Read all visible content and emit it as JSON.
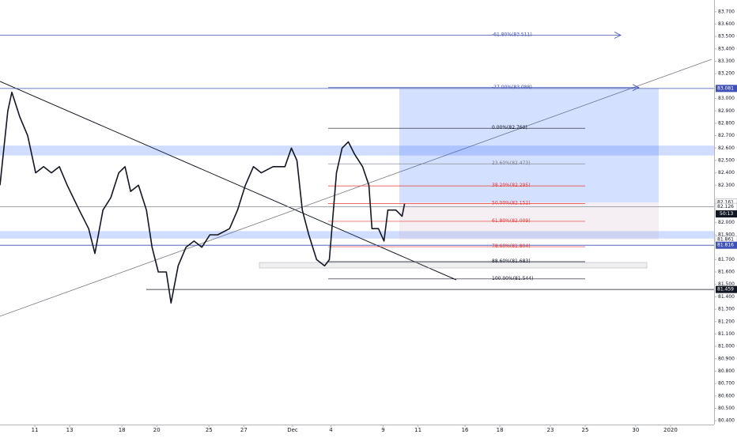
{
  "chart_data": {
    "type": "line",
    "x": [
      0,
      0.45,
      0.68,
      1.14,
      1.59,
      2.05,
      2.5,
      2.95,
      3.41,
      3.86,
      4.55,
      5.09,
      5.45,
      5.91,
      6.36,
      6.82,
      7.18,
      7.5,
      7.95,
      8.41,
      8.73,
      9.09,
      9.55,
      9.82,
      10.23,
      10.68,
      11.14,
      11.59,
      12.05,
      12.5,
      13.18,
      13.64,
      14.09,
      14.55,
      15,
      15.68,
      16.36,
      16.73,
      17.05,
      17.36,
      17.73,
      18.18,
      18.64,
      18.91,
      19.32,
      19.64,
      20,
      20.36,
      20.82,
      21.18,
      21.36,
      21.73,
      22.05,
      22.27,
      22.73,
      23.09,
      23.23
    ],
    "values": [
      82.3,
      82.9,
      83.05,
      82.85,
      82.7,
      82.4,
      82.45,
      82.4,
      82.45,
      82.3,
      82.1,
      81.95,
      81.75,
      82.1,
      82.2,
      82.4,
      82.45,
      82.25,
      82.3,
      82.1,
      81.8,
      81.6,
      81.6,
      81.35,
      81.65,
      81.8,
      81.85,
      81.8,
      81.9,
      81.9,
      81.95,
      82.1,
      82.3,
      82.45,
      82.4,
      82.45,
      82.45,
      82.6,
      82.5,
      82.1,
      81.9,
      81.7,
      81.65,
      81.7,
      82.4,
      82.6,
      82.65,
      82.55,
      82.45,
      82.3,
      81.95,
      81.95,
      81.85,
      82.1,
      82.1,
      82.05,
      82.15
    ],
    "color": "#131722",
    "xlim": [
      0,
      41
    ],
    "xticks": [
      {
        "value": 2,
        "label": "11"
      },
      {
        "value": 4,
        "label": "13"
      },
      {
        "value": 7,
        "label": "18"
      },
      {
        "value": 9,
        "label": "20"
      },
      {
        "value": 12,
        "label": "25"
      },
      {
        "value": 14,
        "label": "27"
      },
      {
        "value": 16.8,
        "label": "Dec"
      },
      {
        "value": 19,
        "label": "4"
      },
      {
        "value": 22,
        "label": "9"
      },
      {
        "value": 24,
        "label": "11"
      },
      {
        "value": 26.7,
        "label": "16"
      },
      {
        "value": 28.7,
        "label": "18"
      },
      {
        "value": 31.6,
        "label": "23"
      },
      {
        "value": 33.6,
        "label": "25"
      },
      {
        "value": 36.5,
        "label": "30"
      },
      {
        "value": 38.5,
        "label": "2020"
      }
    ],
    "ylim": [
      80.35,
      83.75
    ],
    "yticks": [
      {
        "value": 83.7,
        "label": "83.700"
      },
      {
        "value": 83.6,
        "label": "83.600"
      },
      {
        "value": 83.5,
        "label": "83.500"
      },
      {
        "value": 83.4,
        "label": "83.400"
      },
      {
        "value": 83.3,
        "label": "83.300"
      },
      {
        "value": 83.2,
        "label": "83.200"
      },
      {
        "value": 83.0,
        "label": "83.000"
      },
      {
        "value": 82.9,
        "label": "82.900"
      },
      {
        "value": 82.8,
        "label": "82.800"
      },
      {
        "value": 82.7,
        "label": "82.700"
      },
      {
        "value": 82.6,
        "label": "82.600"
      },
      {
        "value": 82.5,
        "label": "82.500"
      },
      {
        "value": 82.4,
        "label": "82.400"
      },
      {
        "value": 82.3,
        "label": "82.300"
      },
      {
        "value": 82.0,
        "label": "82.000"
      },
      {
        "value": 81.9,
        "label": "81.900"
      },
      {
        "value": 81.7,
        "label": "81.700"
      },
      {
        "value": 81.6,
        "label": "81.600"
      },
      {
        "value": 81.5,
        "label": "81.500"
      },
      {
        "value": 81.4,
        "label": "81.400"
      },
      {
        "value": 81.3,
        "label": "81.300"
      },
      {
        "value": 81.2,
        "label": "81.200"
      },
      {
        "value": 81.1,
        "label": "81.100"
      },
      {
        "value": 81.0,
        "label": "81.000"
      },
      {
        "value": 80.9,
        "label": "80.900"
      },
      {
        "value": 80.8,
        "label": "80.800"
      },
      {
        "value": 80.7,
        "label": "80.700"
      },
      {
        "value": 80.6,
        "label": "80.600"
      },
      {
        "value": 80.5,
        "label": "80.500"
      },
      {
        "value": 80.4,
        "label": "80.400"
      }
    ],
    "fib_levels": [
      {
        "value": 83.511,
        "label": "-61.80%(83.511)",
        "color": "#3f51b5"
      },
      {
        "value": 83.088,
        "label": "-27.00%(83.088)",
        "color": "#3f51b5"
      },
      {
        "value": 82.76,
        "label": "0.00%(82.760)",
        "color": "#131722"
      },
      {
        "value": 82.473,
        "label": "23.60%(82.473)",
        "color": "#787b86"
      },
      {
        "value": 82.295,
        "label": "38.20%(82.295)",
        "color": "#e53935"
      },
      {
        "value": 82.152,
        "label": "50.00%(82.152)",
        "color": "#e53935"
      },
      {
        "value": 82.009,
        "label": "61.80%(82.009)",
        "color": "#e53935"
      },
      {
        "value": 81.804,
        "label": "78.60%(81.804)",
        "color": "#e53935"
      },
      {
        "value": 81.683,
        "label": "88.60%(81.683)",
        "color": "#131722"
      },
      {
        "value": 81.544,
        "label": "100.00%(81.544)",
        "color": "#131722"
      }
    ],
    "zones": [
      {
        "from": 82.54,
        "to": 82.62
      },
      {
        "from": 81.87,
        "to": 81.93
      }
    ],
    "price_labels": [
      {
        "value": 83.081,
        "label": "83.081",
        "color": "#3f51b5"
      },
      {
        "value": 82.161,
        "label": "82.161",
        "color": "#ffffff"
      },
      {
        "value": 82.126,
        "label": "82.126",
        "color": "#ffffff"
      },
      {
        "value": 81.861,
        "label": "81.861",
        "color": "#ffffff"
      },
      {
        "value": 81.816,
        "label": "81.816",
        "color": "#3f51b5"
      },
      {
        "value": 81.459,
        "label": "81.459",
        "color": "#131722"
      }
    ],
    "countdown": "50:13"
  }
}
